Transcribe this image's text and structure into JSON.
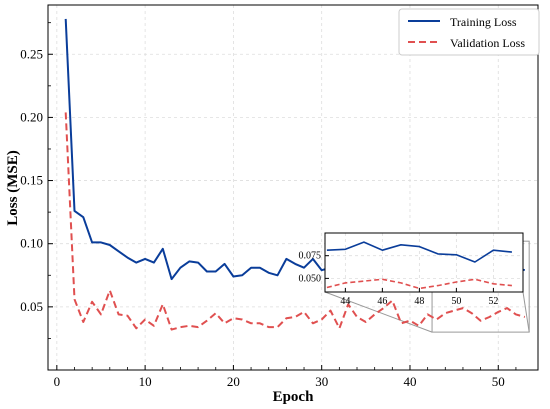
{
  "chart_data": {
    "type": "line",
    "xlabel": "Epoch",
    "ylabel": "Loss (MSE)",
    "xlim": [
      -1,
      54.5
    ],
    "ylim": [
      0,
      0.289
    ],
    "x_ticks": [
      0,
      10,
      20,
      30,
      40,
      50
    ],
    "y_ticks": [
      0.05,
      0.1,
      0.15,
      0.2,
      0.25
    ],
    "x_tick_labels": [
      "0",
      "10",
      "20",
      "30",
      "40",
      "50"
    ],
    "y_tick_labels": [
      "0.05",
      "0.10",
      "0.15",
      "0.20",
      "0.25"
    ],
    "grid": true,
    "legend_position": "top-right",
    "series": [
      {
        "name": "Training Loss",
        "color": "#0a3d9a",
        "style": "solid",
        "x": [
          1,
          2,
          3,
          4,
          5,
          6,
          7,
          8,
          9,
          10,
          11,
          12,
          13,
          14,
          15,
          16,
          17,
          18,
          19,
          20,
          21,
          22,
          23,
          24,
          25,
          26,
          27,
          28,
          29,
          30,
          31,
          32,
          33,
          34,
          35,
          36,
          37,
          38,
          39,
          40,
          41,
          42,
          43,
          44,
          45,
          46,
          47,
          48,
          49,
          50,
          51,
          52,
          53
        ],
        "values": [
          0.278,
          0.126,
          0.121,
          0.101,
          0.101,
          0.099,
          0.094,
          0.089,
          0.085,
          0.088,
          0.085,
          0.096,
          0.072,
          0.081,
          0.086,
          0.085,
          0.078,
          0.078,
          0.084,
          0.074,
          0.075,
          0.081,
          0.081,
          0.077,
          0.075,
          0.088,
          0.084,
          0.081,
          0.088,
          0.079,
          0.081,
          0.081,
          0.086,
          0.083,
          0.079,
          0.083,
          0.077,
          0.083,
          0.081,
          0.081,
          0.077,
          0.08,
          0.081,
          0.082,
          0.09,
          0.081,
          0.087,
          0.085,
          0.077,
          0.076,
          0.068,
          0.081,
          0.079
        ]
      },
      {
        "name": "Validation Loss",
        "color": "#e05050",
        "style": "dashed",
        "x": [
          1,
          2,
          3,
          4,
          5,
          6,
          7,
          8,
          9,
          10,
          11,
          12,
          13,
          14,
          15,
          16,
          17,
          18,
          19,
          20,
          21,
          22,
          23,
          24,
          25,
          26,
          27,
          28,
          29,
          30,
          31,
          32,
          33,
          34,
          35,
          36,
          37,
          38,
          39,
          40,
          41,
          42,
          43,
          44,
          45,
          46,
          47,
          48,
          49,
          50,
          51,
          52,
          53
        ],
        "values": [
          0.204,
          0.056,
          0.038,
          0.054,
          0.044,
          0.063,
          0.044,
          0.043,
          0.033,
          0.04,
          0.035,
          0.052,
          0.032,
          0.034,
          0.035,
          0.034,
          0.039,
          0.045,
          0.037,
          0.041,
          0.04,
          0.037,
          0.037,
          0.034,
          0.034,
          0.041,
          0.042,
          0.046,
          0.037,
          0.04,
          0.047,
          0.033,
          0.052,
          0.042,
          0.038,
          0.044,
          0.049,
          0.055,
          0.037,
          0.039,
          0.035,
          0.044,
          0.04,
          0.045,
          0.047,
          0.049,
          0.045,
          0.039,
          0.042,
          0.046,
          0.049,
          0.044,
          0.042
        ]
      }
    ],
    "inset": {
      "xlim": [
        42.9,
        53.6
      ],
      "ylim": [
        0.035,
        0.1
      ],
      "x_ticks": [
        44,
        46,
        48,
        50,
        52
      ],
      "y_ticks": [
        0.05,
        0.075
      ],
      "x_tick_labels": [
        "44",
        "46",
        "48",
        "50",
        "52"
      ],
      "y_tick_labels": [
        "0.050",
        "0.075"
      ],
      "zoom_region": {
        "x": [
          42.5,
          53.5
        ],
        "y": [
          0.03,
          0.102
        ]
      }
    }
  }
}
